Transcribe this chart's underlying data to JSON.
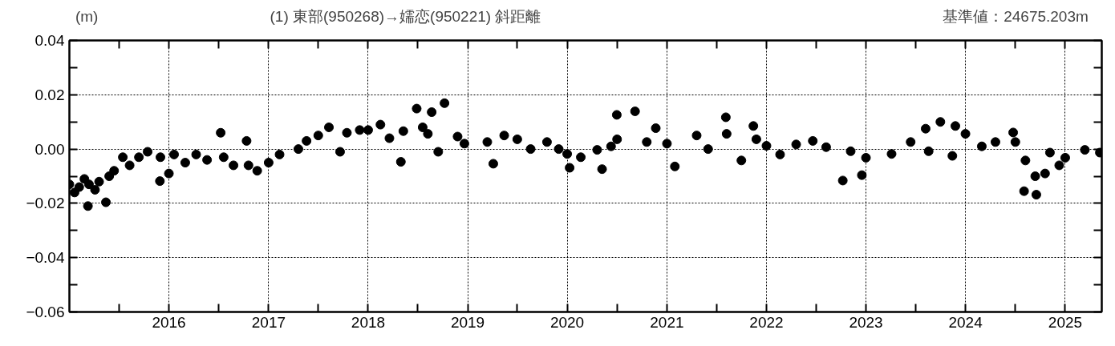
{
  "chart_data": {
    "type": "scatter",
    "title": "(1) 東部(950268)→嬬恋(950221) 斜距離",
    "ylabel": "(m)",
    "annotations": [
      "基準値：24675.203m"
    ],
    "xlim": [
      "2015-01-01",
      "2025-05-15"
    ],
    "xticks": [
      {
        "value": "2015-07-02",
        "label": null
      },
      {
        "value": "2016-01-01",
        "label": "2016"
      },
      {
        "value": "2016-07-02",
        "label": null
      },
      {
        "value": "2017-01-01",
        "label": "2017"
      },
      {
        "value": "2017-07-02",
        "label": null
      },
      {
        "value": "2018-01-01",
        "label": "2018"
      },
      {
        "value": "2018-07-02",
        "label": null
      },
      {
        "value": "2019-01-01",
        "label": "2019"
      },
      {
        "value": "2019-07-02",
        "label": null
      },
      {
        "value": "2020-01-01",
        "label": "2020"
      },
      {
        "value": "2020-07-02",
        "label": null
      },
      {
        "value": "2021-01-01",
        "label": "2021"
      },
      {
        "value": "2021-07-02",
        "label": null
      },
      {
        "value": "2022-01-01",
        "label": "2022"
      },
      {
        "value": "2022-07-02",
        "label": null
      },
      {
        "value": "2023-01-01",
        "label": "2023"
      },
      {
        "value": "2023-07-02",
        "label": null
      },
      {
        "value": "2024-01-01",
        "label": "2024"
      },
      {
        "value": "2024-07-02",
        "label": null
      },
      {
        "value": "2025-01-01",
        "label": "2025"
      }
    ],
    "ylim": [
      -0.06,
      0.04
    ],
    "yticks": [
      {
        "value": -0.06,
        "label": "−0.06"
      },
      {
        "value": -0.05,
        "label": null
      },
      {
        "value": -0.04,
        "label": "−0.04"
      },
      {
        "value": -0.03,
        "label": null
      },
      {
        "value": -0.02,
        "label": "−0.02"
      },
      {
        "value": -0.01,
        "label": null
      },
      {
        "value": 0,
        "label": "0.00"
      },
      {
        "value": 0.01,
        "label": null
      },
      {
        "value": 0.02,
        "label": "0.02"
      },
      {
        "value": 0.03,
        "label": null
      },
      {
        "value": 0.04,
        "label": "0.04"
      }
    ],
    "grid": true,
    "marker": "circle",
    "series": [
      {
        "color": "#000000",
        "x": [
          "2015-01-01",
          "2015-01-20",
          "2015-02-06",
          "2015-02-25",
          "2015-03-10",
          "2015-03-14",
          "2015-04-05",
          "2015-04-20",
          "2015-05-15",
          "2015-05-27",
          "2015-06-14",
          "2015-07-16",
          "2015-08-10",
          "2015-09-13",
          "2015-10-15",
          "2015-11-29",
          "2015-12-01",
          "2016-01-01",
          "2016-01-20",
          "2016-03-01",
          "2016-04-10",
          "2016-05-20",
          "2016-07-09",
          "2016-07-20",
          "2016-08-25",
          "2016-10-12",
          "2016-10-19",
          "2016-11-20",
          "2017-01-01",
          "2017-02-10",
          "2017-04-20",
          "2017-05-20",
          "2017-07-02",
          "2017-08-10",
          "2017-09-20",
          "2017-10-15",
          "2017-12-01",
          "2018-01-01",
          "2018-02-15",
          "2018-03-20",
          "2018-05-01",
          "2018-05-10",
          "2018-06-28",
          "2018-07-20",
          "2018-08-08",
          "2018-08-22",
          "2018-09-15",
          "2018-10-08",
          "2018-11-25",
          "2018-12-20",
          "2019-03-14",
          "2019-04-05",
          "2019-05-15",
          "2019-07-02",
          "2019-08-20",
          "2019-10-19",
          "2019-12-01",
          "2020-01-01",
          "2020-01-10",
          "2020-02-20",
          "2020-04-20",
          "2020-05-08",
          "2020-06-10",
          "2020-07-01",
          "2020-07-02",
          "2020-09-06",
          "2020-10-19",
          "2020-11-21",
          "2021-01-01",
          "2021-01-30",
          "2021-04-20",
          "2021-06-01",
          "2021-08-05",
          "2021-08-08",
          "2021-10-01",
          "2021-11-14",
          "2021-11-25",
          "2022-01-01",
          "2022-02-20",
          "2022-04-20",
          "2022-06-20",
          "2022-08-08",
          "2022-10-08",
          "2022-11-06",
          "2022-12-17",
          "2023-01-01",
          "2023-04-05",
          "2023-06-14",
          "2023-08-08",
          "2023-08-19",
          "2023-10-01",
          "2023-11-14",
          "2023-11-25",
          "2024-01-01",
          "2024-03-01",
          "2024-04-20",
          "2024-06-24",
          "2024-07-02",
          "2024-08-03",
          "2024-08-08",
          "2024-09-13",
          "2024-09-17",
          "2024-10-19",
          "2024-11-06",
          "2024-12-10",
          "2025-01-01",
          "2025-03-14",
          "2025-05-08"
        ],
        "values": [
          -0.013,
          -0.016,
          -0.014,
          -0.011,
          -0.021,
          -0.013,
          -0.015,
          -0.012,
          -0.0196,
          -0.01,
          -0.008,
          -0.003,
          -0.006,
          -0.003,
          -0.001,
          -0.0118,
          -0.003,
          -0.009,
          -0.002,
          -0.005,
          -0.002,
          -0.004,
          0.006,
          -0.003,
          -0.006,
          0.003,
          -0.006,
          -0.008,
          -0.005,
          -0.002,
          0.0,
          0.003,
          0.005,
          0.008,
          -0.001,
          0.006,
          0.007,
          0.007,
          0.009,
          0.004,
          -0.0047,
          0.0066,
          0.0149,
          0.008,
          0.0056,
          0.0136,
          -0.001,
          0.0169,
          0.0046,
          0.002,
          0.0026,
          -0.0054,
          0.005,
          0.0036,
          0.0,
          0.0026,
          0.0,
          -0.0018,
          -0.0069,
          -0.003,
          -0.0003,
          -0.0074,
          0.001,
          0.0126,
          0.0036,
          0.0139,
          0.0026,
          0.0077,
          0.002,
          -0.0064,
          0.005,
          0.0,
          0.0117,
          0.0056,
          -0.0042,
          0.0085,
          0.0036,
          0.0012,
          -0.002,
          0.0017,
          0.003,
          0.0007,
          -0.0116,
          -0.0008,
          -0.0096,
          -0.0032,
          -0.0018,
          0.0026,
          0.0075,
          -0.0008,
          0.01,
          -0.0025,
          0.0085,
          0.0056,
          0.001,
          0.0026,
          0.0061,
          0.0026,
          -0.0155,
          -0.0042,
          -0.01,
          -0.0168,
          -0.009,
          -0.0013,
          -0.006,
          -0.0032,
          -0.0003,
          -0.0013
        ]
      }
    ]
  }
}
